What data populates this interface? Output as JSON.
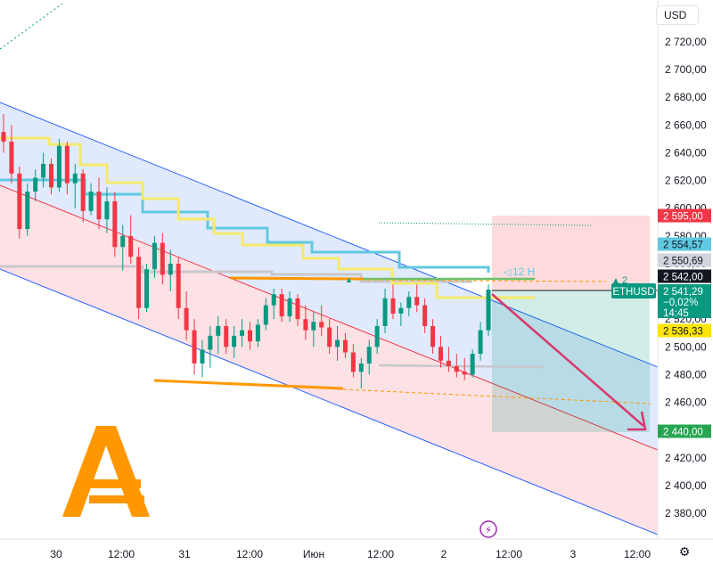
{
  "currency": "USD",
  "chart_data": {
    "type": "candlestick",
    "symbol": "ETHUSD",
    "y_axis": {
      "min": 2370,
      "max": 2730,
      "ticks": [
        "2 720,00",
        "2 700,00",
        "2 680,00",
        "2 660,00",
        "2 640,00",
        "2 620,00",
        "2 600,00",
        "2 580,00",
        "2 560,00",
        "2 540,00",
        "2 520,00",
        "2 500,00",
        "2 480,00",
        "2 460,00",
        "2 440,00",
        "2 420,00",
        "2 400,00",
        "2 380,00"
      ]
    },
    "x_axis": {
      "ticks": [
        "30",
        "12:00",
        "31",
        "12:00",
        "Июн",
        "12:00",
        "2",
        "12:00",
        "3",
        "12:00"
      ]
    },
    "price_labels": [
      {
        "name": "target-top",
        "text": "2 595,00",
        "value": 2595,
        "bg": "#f23645",
        "fg": "#ffffff"
      },
      {
        "name": "cyan-line",
        "text": "2 554,57",
        "value": 2554.57,
        "bg": "#5fc9e0",
        "fg": "#131722"
      },
      {
        "name": "gray-line",
        "text": "2 550,69",
        "value": 2550.69,
        "bg": "#d1d4dc",
        "fg": "#131722"
      },
      {
        "name": "last-high",
        "text": "2 542,00",
        "value": 2542,
        "bg": "#131722",
        "fg": "#ffffff"
      },
      {
        "name": "current",
        "text": "2 541,29",
        "value": 2541.29,
        "bg": "#089981",
        "fg": "#ffffff",
        "change": "−0,02%",
        "countdown": "14:45"
      },
      {
        "name": "yellow-line",
        "text": "2 536,33",
        "value": 2536.33,
        "bg": "#ffe500",
        "fg": "#131722"
      },
      {
        "name": "target-bottom",
        "text": "2 440,00",
        "value": 2440,
        "bg": "#26a650",
        "fg": "#ffffff"
      }
    ],
    "annotations": {
      "interval_label": "12 H",
      "alert_label": "2",
      "symbol_tag": "ETHUSD"
    },
    "colors": {
      "up": "#089981",
      "down": "#f23645",
      "channel_upper_fill": "#dbe6fb",
      "channel_lower_fill": "#fbdce0",
      "channel_border": "#2962ff",
      "channel_mid": "#f23645",
      "yellow": "#f5e96b",
      "cyan": "#5fc9e0",
      "orange": "#ff9800",
      "gray": "#c8c8cc"
    },
    "candles": [
      [
        2655,
        2668,
        2640,
        2648
      ],
      [
        2648,
        2660,
        2618,
        2625
      ],
      [
        2625,
        2630,
        2578,
        2585
      ],
      [
        2585,
        2618,
        2580,
        2612
      ],
      [
        2612,
        2628,
        2605,
        2622
      ],
      [
        2622,
        2640,
        2615,
        2632
      ],
      [
        2632,
        2636,
        2610,
        2615
      ],
      [
        2615,
        2650,
        2612,
        2645
      ],
      [
        2645,
        2648,
        2610,
        2618
      ],
      [
        2618,
        2632,
        2600,
        2625
      ],
      [
        2625,
        2628,
        2590,
        2598
      ],
      [
        2598,
        2618,
        2595,
        2612
      ],
      [
        2612,
        2622,
        2585,
        2592
      ],
      [
        2592,
        2615,
        2582,
        2605
      ],
      [
        2605,
        2612,
        2565,
        2572
      ],
      [
        2572,
        2588,
        2555,
        2580
      ],
      [
        2580,
        2595,
        2560,
        2565
      ],
      [
        2565,
        2572,
        2520,
        2528
      ],
      [
        2528,
        2560,
        2525,
        2556
      ],
      [
        2556,
        2580,
        2550,
        2575
      ],
      [
        2575,
        2582,
        2545,
        2552
      ],
      [
        2552,
        2570,
        2540,
        2560
      ],
      [
        2560,
        2565,
        2520,
        2528
      ],
      [
        2528,
        2540,
        2505,
        2512
      ],
      [
        2512,
        2520,
        2480,
        2488
      ],
      [
        2488,
        2505,
        2478,
        2498
      ],
      [
        2498,
        2515,
        2485,
        2508
      ],
      [
        2508,
        2522,
        2495,
        2515
      ],
      [
        2515,
        2520,
        2495,
        2500
      ],
      [
        2500,
        2515,
        2492,
        2508
      ],
      [
        2508,
        2520,
        2500,
        2512
      ],
      [
        2512,
        2518,
        2498,
        2504
      ],
      [
        2504,
        2520,
        2500,
        2516
      ],
      [
        2516,
        2535,
        2512,
        2530
      ],
      [
        2530,
        2542,
        2520,
        2538
      ],
      [
        2538,
        2542,
        2518,
        2522
      ],
      [
        2522,
        2540,
        2518,
        2535
      ],
      [
        2535,
        2538,
        2515,
        2520
      ],
      [
        2520,
        2530,
        2505,
        2512
      ],
      [
        2512,
        2525,
        2500,
        2518
      ],
      [
        2518,
        2530,
        2508,
        2514
      ],
      [
        2514,
        2520,
        2495,
        2500
      ],
      [
        2500,
        2515,
        2490,
        2505
      ],
      [
        2505,
        2510,
        2492,
        2496
      ],
      [
        2496,
        2502,
        2478,
        2482
      ],
      [
        2482,
        2492,
        2470,
        2488
      ],
      [
        2488,
        2505,
        2480,
        2500
      ],
      [
        2500,
        2520,
        2495,
        2515
      ],
      [
        2515,
        2542,
        2510,
        2535
      ],
      [
        2535,
        2545,
        2520,
        2524
      ],
      [
        2524,
        2532,
        2515,
        2528
      ],
      [
        2528,
        2540,
        2522,
        2536
      ],
      [
        2536,
        2545,
        2525,
        2530
      ],
      [
        2530,
        2535,
        2510,
        2515
      ],
      [
        2515,
        2520,
        2495,
        2500
      ],
      [
        2500,
        2508,
        2485,
        2490
      ],
      [
        2490,
        2500,
        2482,
        2486
      ],
      [
        2486,
        2495,
        2478,
        2482
      ],
      [
        2482,
        2492,
        2476,
        2480
      ],
      [
        2480,
        2498,
        2478,
        2495
      ],
      [
        2495,
        2518,
        2490,
        2512
      ],
      [
        2512,
        2545,
        2508,
        2541.29
      ]
    ]
  }
}
